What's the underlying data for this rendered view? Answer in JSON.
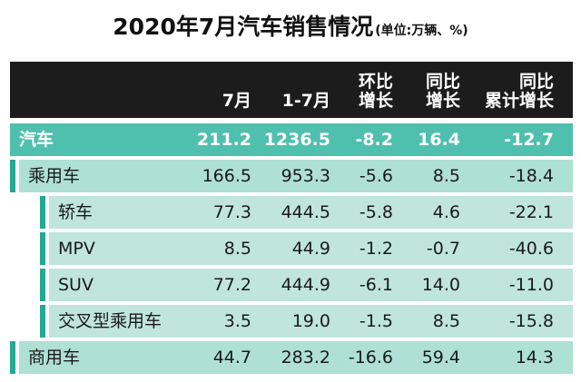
{
  "title": {
    "main": "2020年7月汽车销售情况",
    "unit": "(单位:万辆、%)"
  },
  "header": {
    "col1": "7月",
    "col2": "1-7月",
    "col3": [
      "环比",
      "增长"
    ],
    "col4": [
      "同比",
      "增长"
    ],
    "col5": [
      "同比",
      "累计增长"
    ]
  },
  "rows": [
    {
      "label": "汽车",
      "values": [
        "211.2",
        "1236.5",
        "-8.2",
        "16.4",
        "-12.7"
      ]
    },
    {
      "label": "乘用车",
      "values": [
        "166.5",
        "953.3",
        "-5.6",
        "8.5",
        "-18.4"
      ]
    },
    {
      "label": "轿车",
      "values": [
        "77.3",
        "444.5",
        "-5.8",
        "4.6",
        "-22.1"
      ]
    },
    {
      "label": "MPV",
      "values": [
        "8.5",
        "44.9",
        "-1.2",
        "-0.7",
        "-40.6"
      ]
    },
    {
      "label": "SUV",
      "values": [
        "77.2",
        "444.9",
        "-6.1",
        "14.0",
        "-11.0"
      ]
    },
    {
      "label": "交叉型乘用车",
      "values": [
        "3.5",
        "19.0",
        "-1.5",
        "8.5",
        "-15.8"
      ]
    },
    {
      "label": "商用车",
      "values": [
        "44.7",
        "283.2",
        "-16.6",
        "59.4",
        "14.3"
      ]
    }
  ],
  "colors": {
    "header_bg": "#1c1c1c",
    "top_row": "#4fbfae",
    "sub_row": "#aee0d5",
    "sub2_row": "#bfe5dc",
    "accent": "#23a893"
  }
}
